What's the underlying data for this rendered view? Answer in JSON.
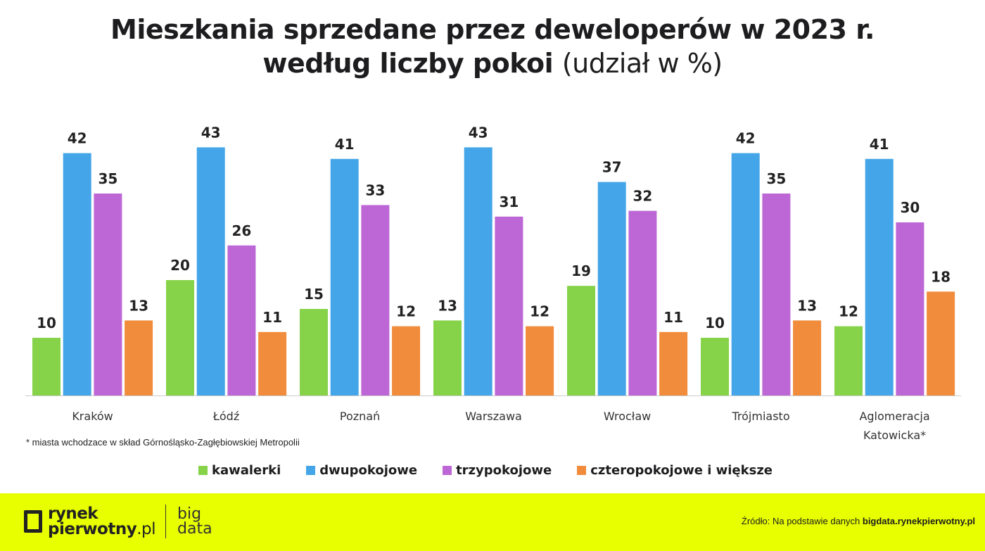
{
  "chart_data": {
    "type": "bar",
    "title": "Mieszkania sprzedane przez deweloperów w 2023 r.",
    "title_line2_bold": "według liczby pokoi",
    "title_line2_light": "(udział w %)",
    "categories": [
      "Kraków",
      "Łódź",
      "Poznań",
      "Warszawa",
      "Wrocław",
      "Trójmiasto",
      "Aglomeracja Katowicka*"
    ],
    "series": [
      {
        "name": "kawalerki",
        "color": "#86d34a",
        "values": [
          10,
          20,
          15,
          13,
          19,
          10,
          12
        ]
      },
      {
        "name": "dwupokojowe",
        "color": "#44a6e8",
        "values": [
          42,
          43,
          41,
          43,
          37,
          42,
          41
        ]
      },
      {
        "name": "trzypokojowe",
        "color": "#bd67d6",
        "values": [
          35,
          26,
          33,
          31,
          32,
          35,
          30
        ]
      },
      {
        "name": "czteropokojowe i większe",
        "color": "#f08c3c",
        "values": [
          13,
          11,
          12,
          12,
          11,
          13,
          18
        ]
      }
    ],
    "data_labels": true,
    "grid": false,
    "legend": "bottom",
    "ylim": [
      0,
      45
    ]
  },
  "note": "* miasta wchodzace w skład Górnośląsko-Zagłębiowskiej Metropolii",
  "footer": {
    "logo_line1": "rynek",
    "logo_line2": "pierwotny",
    "logo_suffix": ".pl",
    "bigdata_line1": "big",
    "bigdata_line2": "data",
    "source_prefix": "Źródło: Na podstawie danych ",
    "source_link": "bigdata.rynekpierwotny.pl",
    "background": "#e8ff00"
  }
}
